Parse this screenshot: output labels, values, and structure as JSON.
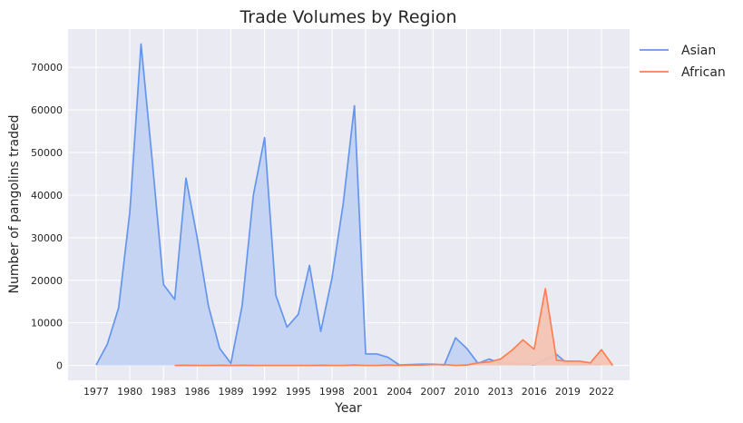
{
  "chart_data": {
    "type": "area",
    "title": "Trade Volumes by Region",
    "xlabel": "Year",
    "ylabel": "Number of pangolins traded",
    "xlim": [
      1974.5,
      2024.5
    ],
    "ylim": [
      -3500,
      79000
    ],
    "xticks": [
      1977,
      1980,
      1983,
      1986,
      1989,
      1992,
      1995,
      1998,
      2001,
      2004,
      2007,
      2010,
      2013,
      2016,
      2019,
      2022
    ],
    "yticks": [
      0,
      10000,
      20000,
      30000,
      40000,
      50000,
      60000,
      70000
    ],
    "grid": true,
    "legend_position": "outside-top-right",
    "series": [
      {
        "name": "Asian",
        "color": "#6495ED",
        "fill": "#C3D3F2",
        "x": [
          1977,
          1978,
          1979,
          1980,
          1981,
          1982,
          1983,
          1984,
          1985,
          1986,
          1987,
          1988,
          1989,
          1990,
          1991,
          1992,
          1993,
          1994,
          1995,
          1996,
          1997,
          1998,
          1999,
          2000,
          2001,
          2002,
          2003,
          2004,
          2005,
          2006,
          2007,
          2008,
          2009,
          2010,
          2011,
          2012,
          2013,
          2014,
          2015,
          2016,
          2017,
          2018,
          2019,
          2020,
          2021,
          2022
        ],
        "values": [
          100,
          5000,
          13500,
          36000,
          75500,
          48000,
          19000,
          15500,
          44000,
          30000,
          14000,
          4000,
          500,
          14000,
          40000,
          53500,
          16500,
          9000,
          12000,
          23500,
          8000,
          20500,
          38000,
          61000,
          2700,
          2700,
          1900,
          100,
          200,
          300,
          300,
          100,
          6500,
          4000,
          500,
          1500,
          500,
          500,
          400,
          100,
          1500,
          2600,
          300,
          400,
          300,
          300
        ]
      },
      {
        "name": "African",
        "color": "#FF7F50",
        "fill": "#F3C4B3",
        "x": [
          1984,
          1985,
          1986,
          1987,
          1988,
          1989,
          1990,
          1991,
          1992,
          1993,
          1994,
          1995,
          1996,
          1997,
          1998,
          1999,
          2000,
          2001,
          2002,
          2003,
          2004,
          2005,
          2006,
          2007,
          2008,
          2009,
          2010,
          2011,
          2012,
          2013,
          2014,
          2015,
          2016,
          2017,
          2018,
          2019,
          2020,
          2021,
          2022,
          2023
        ],
        "values": [
          0,
          50,
          0,
          0,
          50,
          0,
          50,
          0,
          0,
          0,
          0,
          0,
          0,
          50,
          0,
          0,
          100,
          0,
          0,
          100,
          0,
          100,
          100,
          200,
          200,
          0,
          100,
          600,
          800,
          1500,
          3500,
          6000,
          3800,
          18000,
          1200,
          1000,
          1000,
          600,
          3700,
          0
        ]
      }
    ]
  }
}
